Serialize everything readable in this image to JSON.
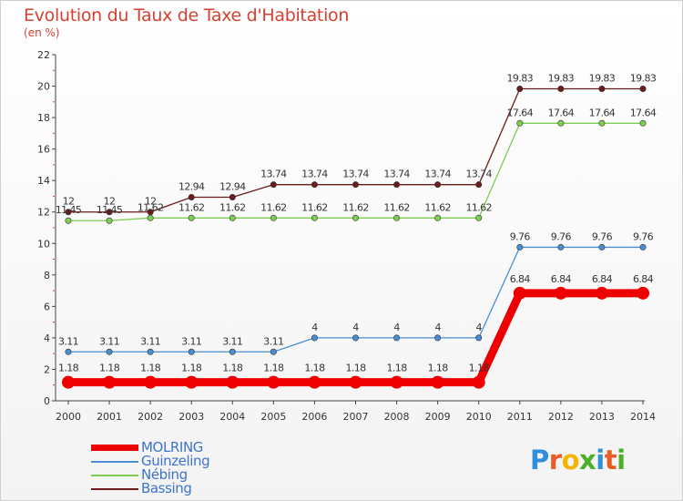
{
  "title": "Evolution du Taux de Taxe d'Habitation",
  "subtitle": "(en %)",
  "logo": {
    "parts": [
      "P",
      "r",
      "o",
      "x",
      "i",
      "t",
      "i"
    ],
    "colors": [
      "#2f8fdc",
      "#e85c28",
      "#f4b400",
      "#4caf2a",
      "#2f8fdc",
      "#e85c28",
      "#4caf2a"
    ]
  },
  "chart_data": {
    "type": "line",
    "x": [
      "2000",
      "2001",
      "2002",
      "2003",
      "2004",
      "2005",
      "2006",
      "2007",
      "2008",
      "2009",
      "2010",
      "2011",
      "2012",
      "2013",
      "2014"
    ],
    "ylim": [
      0,
      22
    ],
    "yticks": [
      0,
      2,
      4,
      6,
      8,
      10,
      12,
      14,
      16,
      18,
      20,
      22
    ],
    "grid": false,
    "legend_position": "bottom-left",
    "series": [
      {
        "name": "Bassing",
        "color": "#6b1b1b",
        "values": [
          12,
          12,
          12,
          12.94,
          12.94,
          13.74,
          13.74,
          13.74,
          13.74,
          13.74,
          13.74,
          19.83,
          19.83,
          19.83,
          19.83
        ],
        "labels": [
          "12",
          "12",
          "12",
          "12.94",
          "12.94",
          "13.74",
          "13.74",
          "13.74",
          "13.74",
          "13.74",
          "13.74",
          "19.83",
          "19.83",
          "19.83",
          "19.83"
        ]
      },
      {
        "name": "Nébing",
        "color": "#7dcd52",
        "values": [
          11.45,
          11.45,
          11.62,
          11.62,
          11.62,
          11.62,
          11.62,
          11.62,
          11.62,
          11.62,
          11.62,
          17.64,
          17.64,
          17.64,
          17.64
        ],
        "labels": [
          "11.45",
          "11.45",
          "11.62",
          "11.62",
          "11.62",
          "11.62",
          "11.62",
          "11.62",
          "11.62",
          "11.62",
          "11.62",
          "17.64",
          "17.64",
          "17.64",
          "17.64"
        ]
      },
      {
        "name": "Guinzeling",
        "color": "#4a8ed1",
        "values": [
          3.11,
          3.11,
          3.11,
          3.11,
          3.11,
          3.11,
          4,
          4,
          4,
          4,
          4,
          9.76,
          9.76,
          9.76,
          9.76
        ],
        "labels": [
          "3.11",
          "3.11",
          "3.11",
          "3.11",
          "3.11",
          "3.11",
          "4",
          "4",
          "4",
          "4",
          "4",
          "9.76",
          "9.76",
          "9.76",
          "9.76"
        ]
      },
      {
        "name": "MOLRING",
        "color": "#ee0000",
        "values": [
          1.18,
          1.18,
          1.18,
          1.18,
          1.18,
          1.18,
          1.18,
          1.18,
          1.18,
          1.18,
          1.18,
          6.84,
          6.84,
          6.84,
          6.84
        ],
        "labels": [
          "1.18",
          "1.18",
          "1.18",
          "1.18",
          "1.18",
          "1.18",
          "1.18",
          "1.18",
          "1.18",
          "1.18",
          "1.18",
          "6.84",
          "6.84",
          "6.84",
          "6.84"
        ]
      }
    ],
    "legend_order": [
      "MOLRING",
      "Guinzeling",
      "Nébing",
      "Bassing"
    ]
  }
}
